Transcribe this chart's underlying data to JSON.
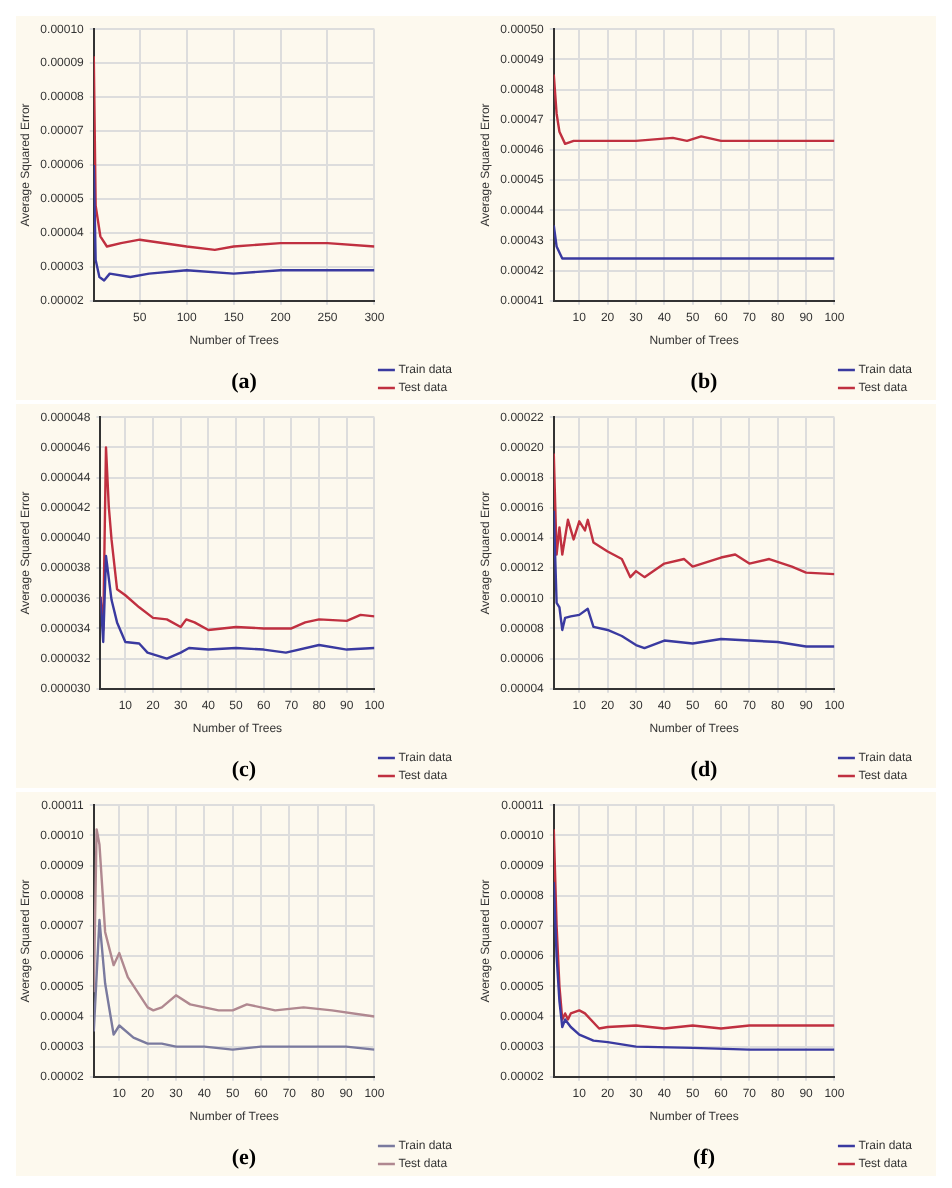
{
  "chart_data": [
    {
      "type": "line",
      "title": "(a)",
      "xlabel": "Number of Trees",
      "ylabel": "Average Squared Error",
      "xlim": [
        1,
        300
      ],
      "xticks": [
        50,
        100,
        150,
        200,
        250,
        300
      ],
      "ylim": [
        2e-05,
        0.0001
      ],
      "yticks": [
        {
          "value": 2e-05,
          "label": "0.00002"
        },
        {
          "value": 3e-05,
          "label": "0.00003"
        },
        {
          "value": 4e-05,
          "label": "0.00004"
        },
        {
          "value": 5e-05,
          "label": "0.00005"
        },
        {
          "value": 6e-05,
          "label": "0.00006"
        },
        {
          "value": 7e-05,
          "label": "0.00007"
        },
        {
          "value": 8e-05,
          "label": "0.00008"
        },
        {
          "value": 9e-05,
          "label": "0.00009"
        },
        {
          "value": 0.0001,
          "label": "0.00010"
        }
      ],
      "grid": true,
      "legend": "bottom right",
      "series": [
        {
          "name": "Train data",
          "color": "#3a3aa0",
          "x": [
            1,
            3,
            7,
            12,
            18,
            40,
            60,
            100,
            150,
            200,
            250,
            300
          ],
          "values": [
            6e-05,
            3.2e-05,
            2.7e-05,
            2.6e-05,
            2.8e-05,
            2.7e-05,
            2.8e-05,
            2.9e-05,
            2.8e-05,
            2.9e-05,
            2.9e-05,
            2.9e-05
          ]
        },
        {
          "name": "Test data",
          "color": "#c03040",
          "x": [
            1,
            3,
            8,
            15,
            30,
            50,
            100,
            130,
            150,
            200,
            250,
            300
          ],
          "values": [
            9.2e-05,
            4.8e-05,
            3.9e-05,
            3.6e-05,
            3.7e-05,
            3.8e-05,
            3.6e-05,
            3.5e-05,
            3.6e-05,
            3.7e-05,
            3.7e-05,
            3.6e-05
          ]
        }
      ]
    },
    {
      "type": "line",
      "title": "(b)",
      "xlabel": "Number of Trees",
      "ylabel": "Average Squared Error",
      "xlim": [
        1,
        100
      ],
      "xticks": [
        10,
        20,
        30,
        40,
        50,
        60,
        70,
        80,
        90,
        100
      ],
      "ylim": [
        0.00041,
        0.0005
      ],
      "yticks": [
        {
          "value": 0.00041,
          "label": "0.00041"
        },
        {
          "value": 0.00042,
          "label": "0.00042"
        },
        {
          "value": 0.00043,
          "label": "0.00043"
        },
        {
          "value": 0.00044,
          "label": "0.00044"
        },
        {
          "value": 0.00045,
          "label": "0.00045"
        },
        {
          "value": 0.00046,
          "label": "0.00046"
        },
        {
          "value": 0.00047,
          "label": "0.00047"
        },
        {
          "value": 0.00048,
          "label": "0.00048"
        },
        {
          "value": 0.00049,
          "label": "0.00049"
        },
        {
          "value": 0.0005,
          "label": "0.00050"
        }
      ],
      "grid": true,
      "legend": "bottom right",
      "series": [
        {
          "name": "Train data",
          "color": "#3a3aa0",
          "x": [
            1,
            2,
            4,
            6,
            10,
            30,
            50,
            70,
            100
          ],
          "values": [
            0.000435,
            0.000428,
            0.000424,
            0.000424,
            0.000424,
            0.000424,
            0.000424,
            0.000424,
            0.000424
          ]
        },
        {
          "name": "Test data",
          "color": "#c03040",
          "x": [
            1,
            2,
            3,
            5,
            8,
            10,
            20,
            30,
            43,
            48,
            53,
            60,
            70,
            80,
            90,
            100
          ],
          "values": [
            0.000485,
            0.000472,
            0.000466,
            0.000462,
            0.000463,
            0.000463,
            0.000463,
            0.000463,
            0.000464,
            0.000463,
            0.0004645,
            0.000463,
            0.000463,
            0.000463,
            0.000463,
            0.000463
          ]
        }
      ]
    },
    {
      "type": "line",
      "title": "(c)",
      "xlabel": "Number of Trees",
      "ylabel": "Average Squared Error",
      "xlim": [
        1,
        100
      ],
      "xticks": [
        10,
        20,
        30,
        40,
        50,
        60,
        70,
        80,
        90,
        100
      ],
      "ylim": [
        3e-05,
        4.8e-05
      ],
      "yticks": [
        {
          "value": 3e-05,
          "label": "0.000030"
        },
        {
          "value": 3.2e-05,
          "label": "0.000032"
        },
        {
          "value": 3.4e-05,
          "label": "0.000034"
        },
        {
          "value": 3.6e-05,
          "label": "0.000036"
        },
        {
          "value": 3.8e-05,
          "label": "0.000038"
        },
        {
          "value": 4e-05,
          "label": "0.000040"
        },
        {
          "value": 4.2e-05,
          "label": "0.000042"
        },
        {
          "value": 4.4e-05,
          "label": "0.000044"
        },
        {
          "value": 4.6e-05,
          "label": "0.000046"
        },
        {
          "value": 4.8e-05,
          "label": "0.000048"
        }
      ],
      "grid": true,
      "legend": "bottom right",
      "series": [
        {
          "name": "Train data",
          "color": "#3a3aa0",
          "x": [
            1,
            2,
            3,
            5,
            7,
            10,
            15,
            18,
            25,
            30,
            33,
            40,
            50,
            60,
            68,
            80,
            90,
            100
          ],
          "values": [
            3.61e-05,
            3.31e-05,
            3.88e-05,
            3.59e-05,
            3.44e-05,
            3.31e-05,
            3.3e-05,
            3.24e-05,
            3.2e-05,
            3.24e-05,
            3.27e-05,
            3.26e-05,
            3.27e-05,
            3.26e-05,
            3.24e-05,
            3.29e-05,
            3.26e-05,
            3.27e-05
          ]
        },
        {
          "name": "Test data",
          "color": "#c03040",
          "x": [
            1,
            2,
            3,
            4,
            5,
            7,
            10,
            15,
            20,
            25,
            30,
            32,
            35,
            40,
            50,
            60,
            70,
            75,
            80,
            90,
            95,
            100
          ],
          "values": [
            3.61e-05,
            3.39e-05,
            4.6e-05,
            4.21e-05,
            3.99e-05,
            3.66e-05,
            3.62e-05,
            3.54e-05,
            3.47e-05,
            3.46e-05,
            3.41e-05,
            3.46e-05,
            3.44e-05,
            3.39e-05,
            3.41e-05,
            3.4e-05,
            3.4e-05,
            3.44e-05,
            3.46e-05,
            3.45e-05,
            3.49e-05,
            3.48e-05
          ]
        }
      ]
    },
    {
      "type": "line",
      "title": "(d)",
      "xlabel": "Number of Trees",
      "ylabel": "Average Squared Error",
      "xlim": [
        1,
        100
      ],
      "xticks": [
        10,
        20,
        30,
        40,
        50,
        60,
        70,
        80,
        90,
        100
      ],
      "ylim": [
        4e-05,
        0.00022
      ],
      "yticks": [
        {
          "value": 4e-05,
          "label": "0.00004"
        },
        {
          "value": 6e-05,
          "label": "0.00006"
        },
        {
          "value": 8e-05,
          "label": "0.00008"
        },
        {
          "value": 0.0001,
          "label": "0.00010"
        },
        {
          "value": 0.00012,
          "label": "0.00012"
        },
        {
          "value": 0.00014,
          "label": "0.00014"
        },
        {
          "value": 0.00016,
          "label": "0.00016"
        },
        {
          "value": 0.00018,
          "label": "0.00018"
        },
        {
          "value": 0.0002,
          "label": "0.00020"
        },
        {
          "value": 0.00022,
          "label": "0.00022"
        }
      ],
      "grid": true,
      "legend": "bottom right",
      "series": [
        {
          "name": "Train data",
          "color": "#3a3aa0",
          "x": [
            1,
            2,
            3,
            4,
            5,
            7,
            10,
            13,
            15,
            20,
            25,
            30,
            33,
            40,
            50,
            60,
            70,
            80,
            90,
            100
          ],
          "values": [
            0.000158,
            9.7e-05,
            9.4e-05,
            7.9e-05,
            8.7e-05,
            8.8e-05,
            8.9e-05,
            9.3e-05,
            8.1e-05,
            7.9e-05,
            7.5e-05,
            6.9e-05,
            6.7e-05,
            7.2e-05,
            7e-05,
            7.3e-05,
            7.2e-05,
            7.1e-05,
            6.8e-05,
            6.8e-05
          ]
        },
        {
          "name": "Test data",
          "color": "#c03040",
          "x": [
            1,
            2,
            3,
            4,
            6,
            8,
            10,
            12,
            13,
            15,
            20,
            25,
            28,
            30,
            33,
            40,
            47,
            50,
            60,
            65,
            70,
            77,
            85,
            90,
            100
          ],
          "values": [
            0.000196,
            0.000129,
            0.000147,
            0.000129,
            0.000152,
            0.000139,
            0.000151,
            0.000145,
            0.000152,
            0.000137,
            0.000131,
            0.000126,
            0.000114,
            0.000118,
            0.000114,
            0.000123,
            0.000126,
            0.000121,
            0.000127,
            0.000129,
            0.000123,
            0.000126,
            0.000121,
            0.000117,
            0.000116
          ]
        }
      ]
    },
    {
      "type": "line",
      "title": "(e)",
      "xlabel": "Number of Trees",
      "ylabel": "Average Squared Error",
      "xlim": [
        1,
        100
      ],
      "xticks": [
        10,
        20,
        30,
        40,
        50,
        60,
        70,
        80,
        90,
        100
      ],
      "ylim": [
        2e-05,
        0.00011
      ],
      "yticks": [
        {
          "value": 2e-05,
          "label": "0.00002"
        },
        {
          "value": 3e-05,
          "label": "0.00003"
        },
        {
          "value": 4e-05,
          "label": "0.00004"
        },
        {
          "value": 5e-05,
          "label": "0.00005"
        },
        {
          "value": 6e-05,
          "label": "0.00006"
        },
        {
          "value": 7e-05,
          "label": "0.00007"
        },
        {
          "value": 8e-05,
          "label": "0.00008"
        },
        {
          "value": 9e-05,
          "label": "0.00009"
        },
        {
          "value": 0.0001,
          "label": "0.00010"
        },
        {
          "value": 0.00011,
          "label": "0.00011"
        }
      ],
      "grid": true,
      "legend": "bottom right",
      "series": [
        {
          "name": "Train data",
          "color": "#7a7a9e",
          "x": [
            1,
            3,
            5,
            8,
            10,
            15,
            20,
            25,
            30,
            40,
            50,
            60,
            70,
            80,
            90,
            100
          ],
          "values": [
            3.5e-05,
            7.2e-05,
            5.1e-05,
            3.4e-05,
            3.7e-05,
            3.3e-05,
            3.1e-05,
            3.1e-05,
            3e-05,
            3e-05,
            2.9e-05,
            3e-05,
            3e-05,
            3e-05,
            3e-05,
            2.9e-05
          ]
        },
        {
          "name": "Test data",
          "color": "#b08890",
          "x": [
            1,
            2,
            3,
            5,
            8,
            10,
            13,
            20,
            22,
            25,
            30,
            35,
            45,
            50,
            55,
            65,
            75,
            85,
            100
          ],
          "values": [
            4.8e-05,
            0.000102,
            9.7e-05,
            6.8e-05,
            5.7e-05,
            6.1e-05,
            5.3e-05,
            4.3e-05,
            4.2e-05,
            4.3e-05,
            4.7e-05,
            4.4e-05,
            4.2e-05,
            4.2e-05,
            4.4e-05,
            4.2e-05,
            4.3e-05,
            4.2e-05,
            4e-05
          ]
        }
      ]
    },
    {
      "type": "line",
      "title": "(f)",
      "xlabel": "Number of Trees",
      "ylabel": "Average Squared Error",
      "xlim": [
        1,
        100
      ],
      "xticks": [
        10,
        20,
        30,
        40,
        50,
        60,
        70,
        80,
        90,
        100
      ],
      "ylim": [
        2e-05,
        0.00011
      ],
      "yticks": [
        {
          "value": 2e-05,
          "label": "0.00002"
        },
        {
          "value": 3e-05,
          "label": "0.00003"
        },
        {
          "value": 4e-05,
          "label": "0.00004"
        },
        {
          "value": 5e-05,
          "label": "0.00005"
        },
        {
          "value": 6e-05,
          "label": "0.00006"
        },
        {
          "value": 7e-05,
          "label": "0.00007"
        },
        {
          "value": 8e-05,
          "label": "0.00008"
        },
        {
          "value": 9e-05,
          "label": "0.00009"
        },
        {
          "value": 0.0001,
          "label": "0.00010"
        },
        {
          "value": 0.00011,
          "label": "0.00011"
        }
      ],
      "grid": true,
      "legend": "bottom right",
      "series": [
        {
          "name": "Train data",
          "color": "#3a3aa0",
          "x": [
            1,
            2,
            3,
            4,
            5,
            7,
            10,
            15,
            20,
            30,
            50,
            70,
            100
          ],
          "values": [
            8.45e-05,
            6e-05,
            4.5e-05,
            3.65e-05,
            3.9e-05,
            3.65e-05,
            3.4e-05,
            3.2e-05,
            3.15e-05,
            3e-05,
            2.96e-05,
            2.9e-05,
            2.9e-05
          ]
        },
        {
          "name": "Test data",
          "color": "#c03040",
          "x": [
            1,
            2,
            3,
            4,
            5,
            6,
            7,
            10,
            12,
            17,
            20,
            30,
            40,
            50,
            60,
            70,
            100
          ],
          "values": [
            0.000102,
            7e-05,
            5e-05,
            3.9e-05,
            4.1e-05,
            3.9e-05,
            4.1e-05,
            4.2e-05,
            4.1e-05,
            3.6e-05,
            3.65e-05,
            3.7e-05,
            3.6e-05,
            3.7e-05,
            3.6e-05,
            3.7e-05,
            3.7e-05
          ]
        }
      ]
    }
  ]
}
